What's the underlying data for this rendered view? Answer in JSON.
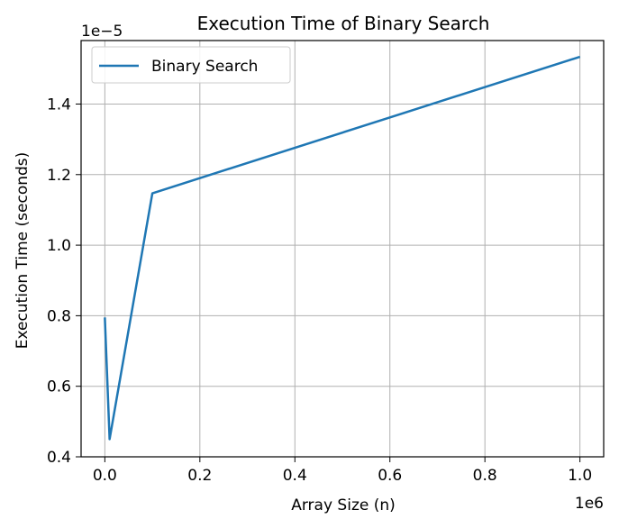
{
  "chart_data": {
    "type": "line",
    "title": "Execution Time of Binary Search",
    "xlabel": "Array Size (n)",
    "ylabel": "Execution Time (seconds)",
    "x_offset_label": "1e6",
    "y_offset_label": "1e−5",
    "x_ticks": [
      0.0,
      0.2,
      0.4,
      0.6,
      0.8,
      1.0
    ],
    "x_tick_labels": [
      "0.0",
      "0.2",
      "0.4",
      "0.6",
      "0.8",
      "1.0"
    ],
    "y_ticks": [
      0.4,
      0.6,
      0.8,
      1.0,
      1.2,
      1.4
    ],
    "y_tick_labels": [
      "0.4",
      "0.6",
      "0.8",
      "1.0",
      "1.2",
      "1.4"
    ],
    "xlim": [
      -0.05,
      1.05
    ],
    "ylim": [
      0.4,
      1.58
    ],
    "grid": true,
    "legend_position": "upper-left",
    "series": [
      {
        "name": "Binary Search",
        "color": "#1f77b4",
        "x": [
          0.0,
          0.01,
          0.1,
          1.0
        ],
        "y": [
          0.795,
          0.45,
          1.147,
          1.534
        ]
      }
    ]
  }
}
